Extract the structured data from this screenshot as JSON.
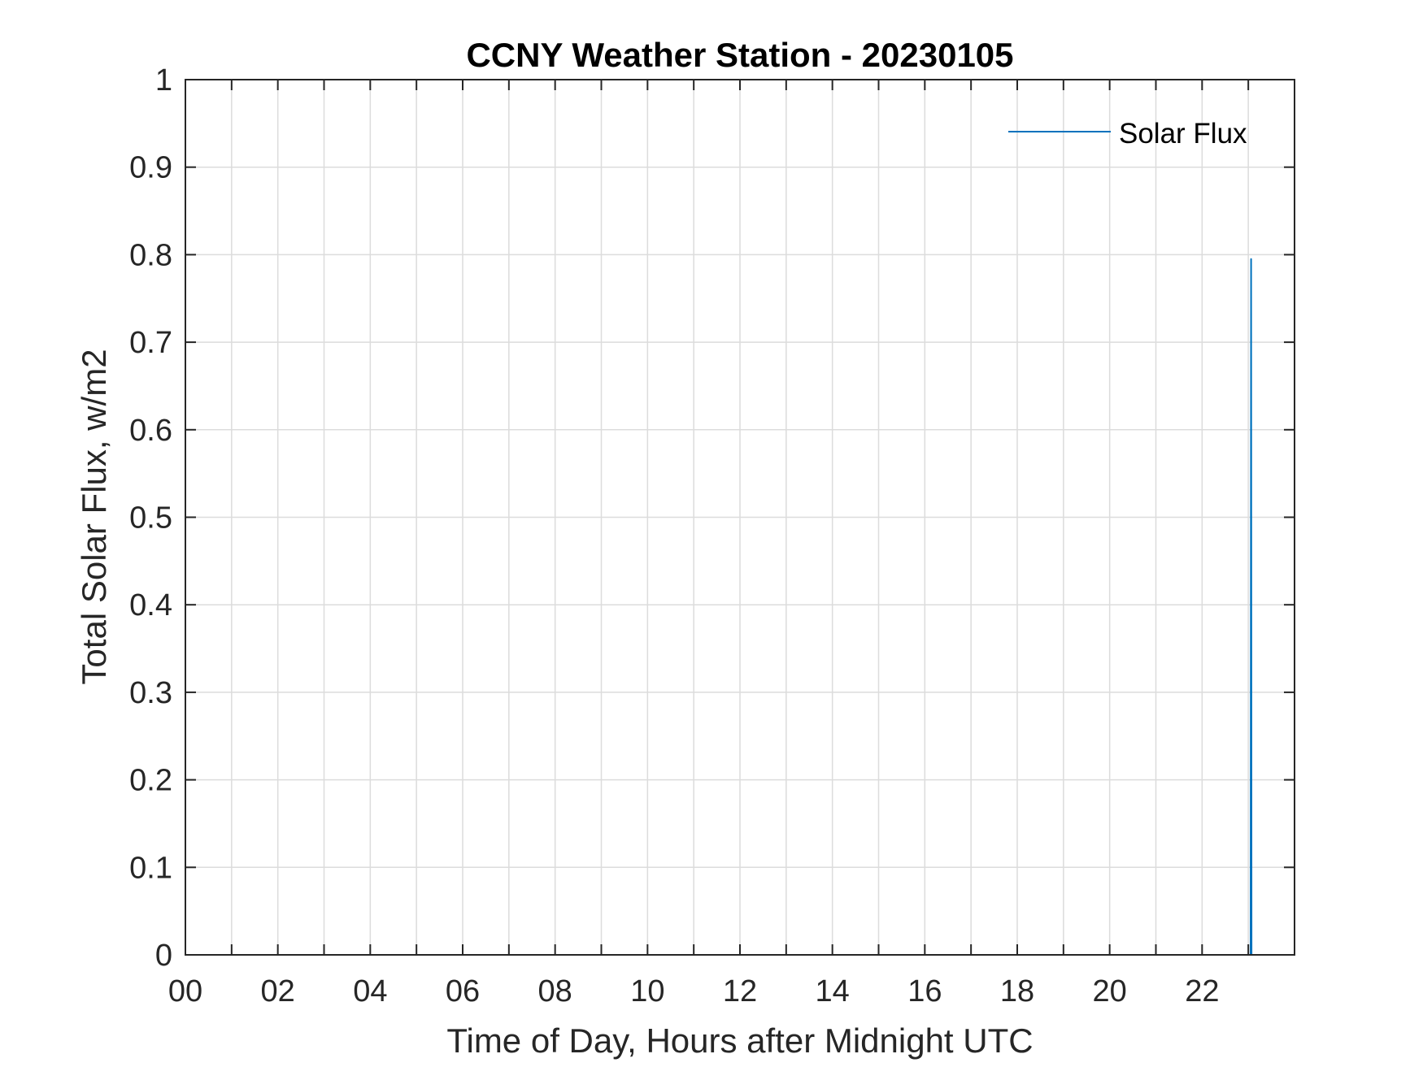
{
  "chart_data": {
    "type": "line",
    "title": "CCNY Weather Station - 20230105",
    "xlabel": "Time of Day, Hours after Midnight UTC",
    "ylabel": "Total Solar Flux, w/m2",
    "xlim": [
      0,
      24
    ],
    "ylim": [
      0,
      1
    ],
    "grid": true,
    "legend_position": "top-right",
    "x_ticks": [
      0,
      2,
      4,
      6,
      8,
      10,
      12,
      14,
      16,
      18,
      20,
      22
    ],
    "x_tick_labels": [
      "00",
      "02",
      "04",
      "06",
      "08",
      "10",
      "12",
      "14",
      "16",
      "18",
      "20",
      "22"
    ],
    "x_minor_grid": [
      1,
      3,
      5,
      7,
      9,
      11,
      13,
      15,
      17,
      19,
      21,
      23
    ],
    "y_ticks": [
      0,
      0.1,
      0.2,
      0.3,
      0.4,
      0.5,
      0.6,
      0.7,
      0.8,
      0.9,
      1
    ],
    "y_tick_labels": [
      "0",
      "0.1",
      "0.2",
      "0.3",
      "0.4",
      "0.5",
      "0.6",
      "0.7",
      "0.8",
      "0.9",
      "1"
    ],
    "series": [
      {
        "name": "Solar Flux",
        "color": "#0072BD",
        "x": [
          23.05,
          23.06,
          23.07
        ],
        "y": [
          0,
          0.795,
          0
        ]
      }
    ]
  }
}
